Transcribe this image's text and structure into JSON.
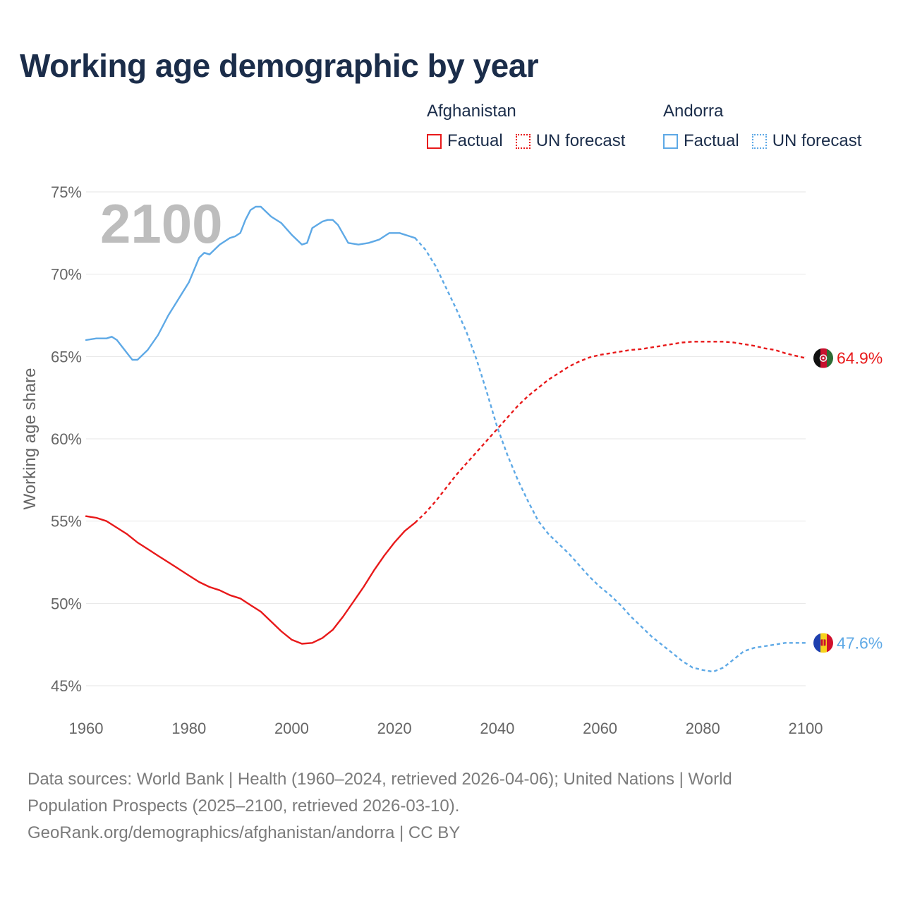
{
  "title": "Working age demographic by year",
  "legend": {
    "groups": [
      {
        "name": "Afghanistan",
        "factual_label": "Factual",
        "forecast_label": "UN forecast",
        "color": "#e8191a"
      },
      {
        "name": "Andorra",
        "factual_label": "Factual",
        "forecast_label": "UN forecast",
        "color": "#5ea9e6"
      }
    ]
  },
  "source": {
    "line1": "Data sources: World Bank | Health (1960–2024, retrieved 2026-04-06); United Nations | World",
    "line2": "Population Prospects (2025–2100, retrieved 2026-03-10).",
    "line3": "GeoRank.org/demographics/afghanistan/andorra | CC BY"
  },
  "chart_data": {
    "type": "line",
    "title": "Working age demographic by year",
    "xlabel": "",
    "ylabel": "Working age share",
    "year_watermark": "2100",
    "xlim": [
      1960,
      2100
    ],
    "ylim": [
      45,
      75
    ],
    "x_ticks": [
      1960,
      1980,
      2000,
      2020,
      2040,
      2060,
      2080,
      2100
    ],
    "y_ticks": [
      45,
      50,
      55,
      60,
      65,
      70,
      75
    ],
    "y_tick_labels": [
      "45%",
      "50%",
      "55%",
      "60%",
      "65%",
      "70%",
      "75%"
    ],
    "grid": true,
    "forecast_start": 2025,
    "series": [
      {
        "name": "Afghanistan",
        "color": "#e8191a",
        "end_label": "64.9%",
        "points": [
          [
            1960,
            55.3
          ],
          [
            1962,
            55.2
          ],
          [
            1964,
            55.0
          ],
          [
            1966,
            54.6
          ],
          [
            1968,
            54.2
          ],
          [
            1970,
            53.7
          ],
          [
            1972,
            53.3
          ],
          [
            1974,
            52.9
          ],
          [
            1976,
            52.5
          ],
          [
            1978,
            52.1
          ],
          [
            1980,
            51.7
          ],
          [
            1982,
            51.3
          ],
          [
            1984,
            51.0
          ],
          [
            1986,
            50.8
          ],
          [
            1988,
            50.5
          ],
          [
            1990,
            50.3
          ],
          [
            1992,
            49.9
          ],
          [
            1994,
            49.5
          ],
          [
            1996,
            48.9
          ],
          [
            1998,
            48.3
          ],
          [
            2000,
            47.8
          ],
          [
            2002,
            47.55
          ],
          [
            2004,
            47.6
          ],
          [
            2006,
            47.9
          ],
          [
            2008,
            48.4
          ],
          [
            2010,
            49.2
          ],
          [
            2012,
            50.1
          ],
          [
            2014,
            51.0
          ],
          [
            2016,
            52.0
          ],
          [
            2018,
            52.9
          ],
          [
            2020,
            53.7
          ],
          [
            2022,
            54.4
          ],
          [
            2024,
            54.9
          ],
          [
            2026,
            55.5
          ],
          [
            2028,
            56.2
          ],
          [
            2030,
            57.0
          ],
          [
            2032,
            57.8
          ],
          [
            2034,
            58.5
          ],
          [
            2036,
            59.2
          ],
          [
            2038,
            59.9
          ],
          [
            2040,
            60.6
          ],
          [
            2042,
            61.3
          ],
          [
            2044,
            62.0
          ],
          [
            2046,
            62.6
          ],
          [
            2048,
            63.1
          ],
          [
            2050,
            63.6
          ],
          [
            2052,
            64.0
          ],
          [
            2054,
            64.4
          ],
          [
            2056,
            64.7
          ],
          [
            2058,
            64.95
          ],
          [
            2060,
            65.1
          ],
          [
            2062,
            65.2
          ],
          [
            2064,
            65.3
          ],
          [
            2066,
            65.4
          ],
          [
            2068,
            65.45
          ],
          [
            2070,
            65.55
          ],
          [
            2072,
            65.65
          ],
          [
            2074,
            65.75
          ],
          [
            2076,
            65.85
          ],
          [
            2078,
            65.9
          ],
          [
            2080,
            65.9
          ],
          [
            2082,
            65.9
          ],
          [
            2084,
            65.9
          ],
          [
            2086,
            65.85
          ],
          [
            2088,
            65.75
          ],
          [
            2090,
            65.65
          ],
          [
            2092,
            65.5
          ],
          [
            2094,
            65.4
          ],
          [
            2096,
            65.2
          ],
          [
            2098,
            65.05
          ],
          [
            2100,
            64.9
          ]
        ]
      },
      {
        "name": "Andorra",
        "color": "#5ea9e6",
        "end_label": "47.6%",
        "points": [
          [
            1960,
            66.0
          ],
          [
            1962,
            66.1
          ],
          [
            1964,
            66.1
          ],
          [
            1965,
            66.2
          ],
          [
            1966,
            66.0
          ],
          [
            1968,
            65.2
          ],
          [
            1969,
            64.8
          ],
          [
            1970,
            64.8
          ],
          [
            1972,
            65.4
          ],
          [
            1974,
            66.3
          ],
          [
            1976,
            67.5
          ],
          [
            1978,
            68.5
          ],
          [
            1980,
            69.5
          ],
          [
            1982,
            71.0
          ],
          [
            1983,
            71.3
          ],
          [
            1984,
            71.2
          ],
          [
            1986,
            71.8
          ],
          [
            1988,
            72.2
          ],
          [
            1989,
            72.3
          ],
          [
            1990,
            72.5
          ],
          [
            1991,
            73.3
          ],
          [
            1992,
            73.9
          ],
          [
            1993,
            74.1
          ],
          [
            1994,
            74.1
          ],
          [
            1996,
            73.5
          ],
          [
            1998,
            73.1
          ],
          [
            2000,
            72.4
          ],
          [
            2002,
            71.8
          ],
          [
            2003,
            71.9
          ],
          [
            2004,
            72.8
          ],
          [
            2006,
            73.2
          ],
          [
            2007,
            73.3
          ],
          [
            2008,
            73.3
          ],
          [
            2009,
            73.0
          ],
          [
            2011,
            71.9
          ],
          [
            2013,
            71.8
          ],
          [
            2015,
            71.9
          ],
          [
            2017,
            72.1
          ],
          [
            2019,
            72.5
          ],
          [
            2021,
            72.5
          ],
          [
            2023,
            72.3
          ],
          [
            2024,
            72.2
          ],
          [
            2026,
            71.5
          ],
          [
            2028,
            70.5
          ],
          [
            2030,
            69.2
          ],
          [
            2032,
            67.9
          ],
          [
            2034,
            66.5
          ],
          [
            2036,
            64.8
          ],
          [
            2038,
            62.8
          ],
          [
            2040,
            60.7
          ],
          [
            2042,
            59.0
          ],
          [
            2044,
            57.5
          ],
          [
            2046,
            56.2
          ],
          [
            2048,
            55.0
          ],
          [
            2050,
            54.2
          ],
          [
            2052,
            53.6
          ],
          [
            2054,
            53.0
          ],
          [
            2056,
            52.3
          ],
          [
            2058,
            51.6
          ],
          [
            2060,
            51.0
          ],
          [
            2062,
            50.5
          ],
          [
            2064,
            49.9
          ],
          [
            2066,
            49.2
          ],
          [
            2068,
            48.6
          ],
          [
            2070,
            48.0
          ],
          [
            2072,
            47.5
          ],
          [
            2074,
            47.0
          ],
          [
            2076,
            46.5
          ],
          [
            2078,
            46.1
          ],
          [
            2080,
            45.95
          ],
          [
            2082,
            45.85
          ],
          [
            2084,
            46.1
          ],
          [
            2086,
            46.6
          ],
          [
            2088,
            47.1
          ],
          [
            2090,
            47.3
          ],
          [
            2092,
            47.4
          ],
          [
            2094,
            47.5
          ],
          [
            2096,
            47.6
          ],
          [
            2098,
            47.6
          ],
          [
            2100,
            47.6
          ]
        ]
      }
    ]
  }
}
